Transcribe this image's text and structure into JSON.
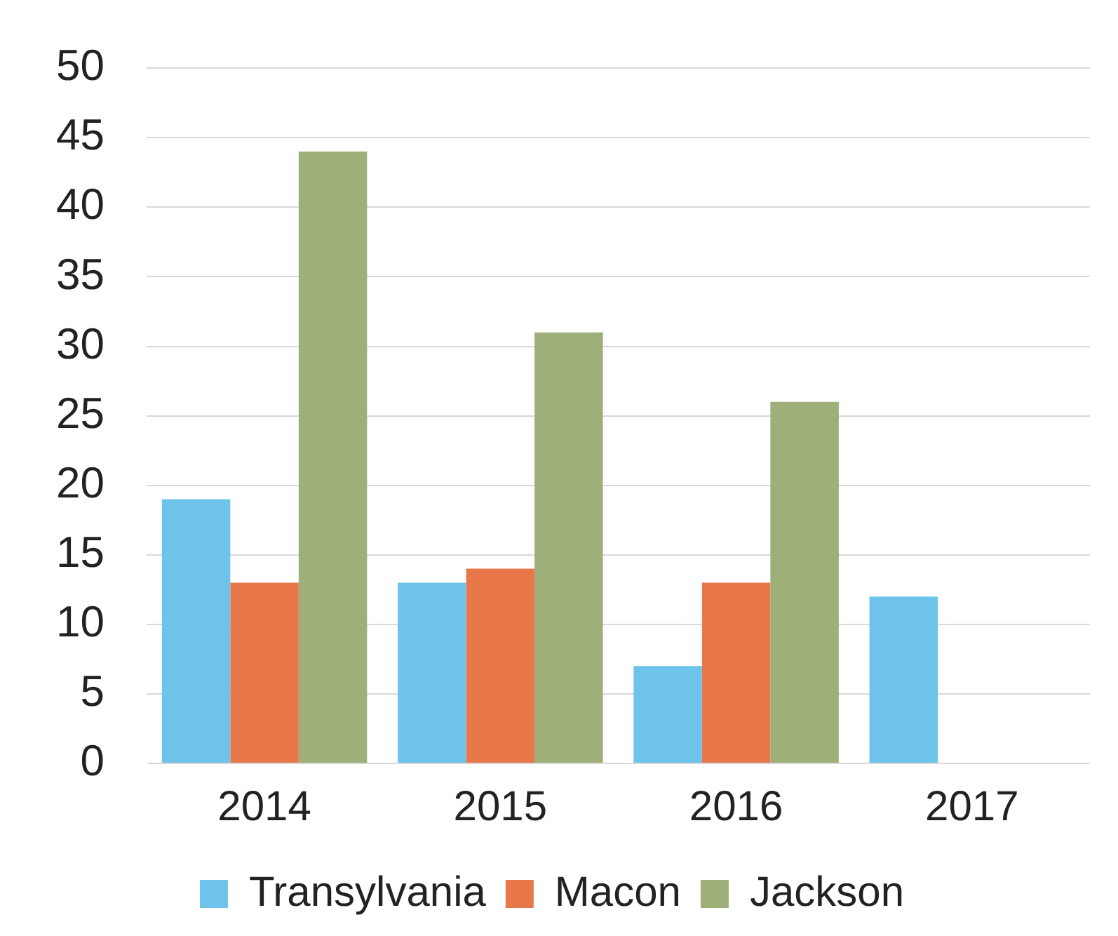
{
  "chart_data": {
    "type": "bar",
    "categories": [
      "2014",
      "2015",
      "2016",
      "2017"
    ],
    "series": [
      {
        "name": "Transylvania",
        "color": "#6ec3ea",
        "values": [
          19,
          13,
          7,
          12
        ]
      },
      {
        "name": "Macon",
        "color": "#e8774a",
        "values": [
          13,
          14,
          13,
          null
        ]
      },
      {
        "name": "Jackson",
        "color": "#9faf7a",
        "values": [
          44,
          31,
          26,
          null
        ]
      }
    ],
    "ylim": [
      0,
      50
    ],
    "yticks": [
      0,
      5,
      10,
      15,
      20,
      25,
      30,
      35,
      40,
      45,
      50
    ],
    "grid": "y",
    "legend": "bottom"
  }
}
